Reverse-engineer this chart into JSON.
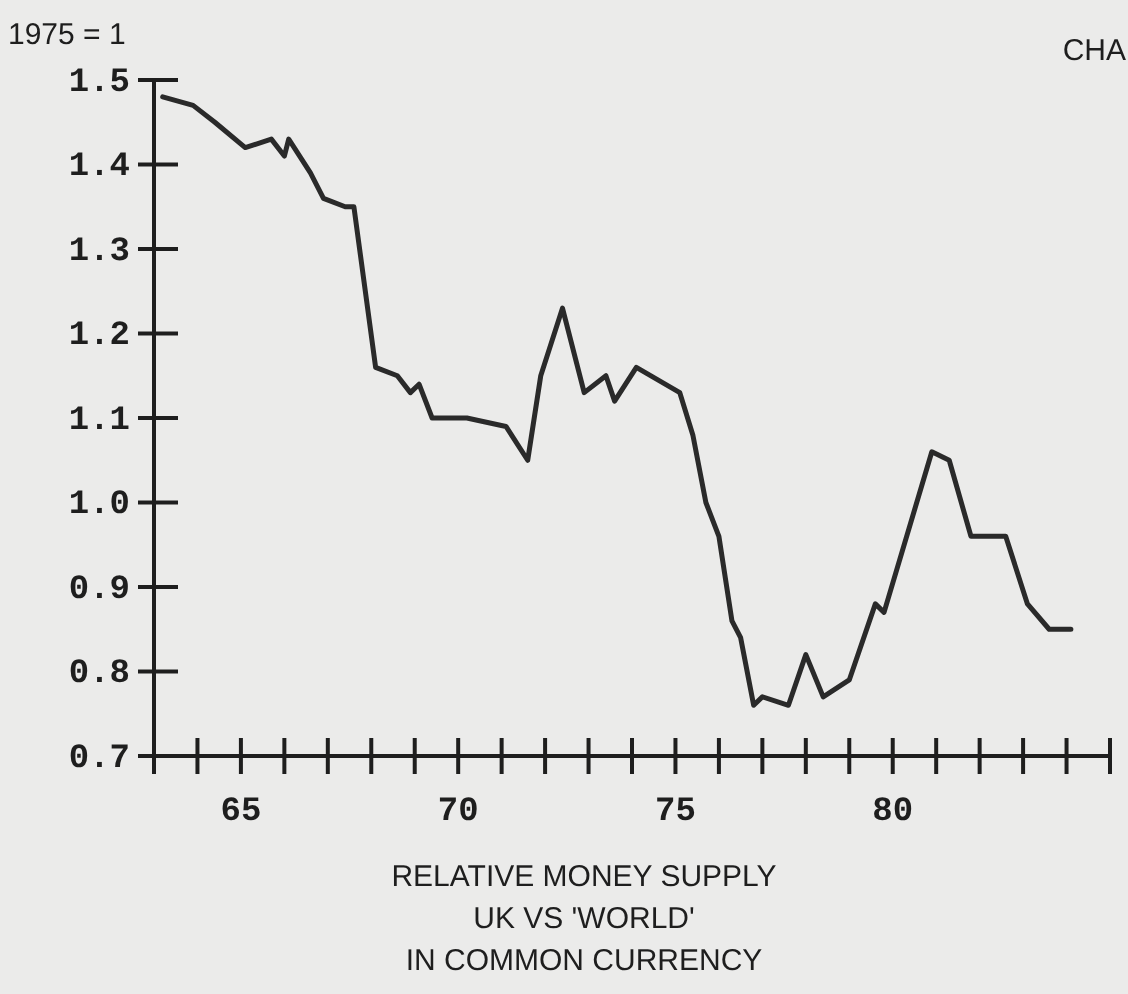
{
  "chart_data": {
    "type": "line",
    "ylabel": "1975 = 1",
    "xlabel": "RELATIVE MONEY SUPPLY\nUK VS 'WORLD'\nIN COMMON CURRENCY",
    "annotations": [
      "CHA"
    ],
    "x": [
      1963.2,
      1963.9,
      1964.4,
      1965.1,
      1965.7,
      1966.0,
      1966.1,
      1966.6,
      1966.9,
      1967.4,
      1967.6,
      1968.1,
      1968.6,
      1968.9,
      1969.1,
      1969.4,
      1970.2,
      1971.1,
      1971.6,
      1971.9,
      1972.4,
      1972.9,
      1973.4,
      1973.6,
      1974.1,
      1975.1,
      1975.4,
      1975.7,
      1976.0,
      1976.3,
      1976.5,
      1976.8,
      1977.0,
      1977.6,
      1978.0,
      1978.4,
      1979.0,
      1979.6,
      1979.8,
      1980.9,
      1981.3,
      1981.8,
      1982.2,
      1982.6,
      1983.1,
      1983.6,
      1984.1
    ],
    "series": [
      {
        "color": "#2a2a2a",
        "values": [
          1.48,
          1.47,
          1.45,
          1.42,
          1.43,
          1.41,
          1.43,
          1.39,
          1.36,
          1.35,
          1.35,
          1.16,
          1.15,
          1.13,
          1.14,
          1.1,
          1.1,
          1.09,
          1.05,
          1.15,
          1.23,
          1.13,
          1.15,
          1.12,
          1.16,
          1.13,
          1.08,
          1.0,
          0.96,
          0.86,
          0.84,
          0.76,
          0.77,
          0.76,
          0.82,
          0.77,
          0.79,
          0.88,
          0.87,
          1.06,
          1.05,
          0.96,
          0.96,
          0.96,
          0.88,
          0.85,
          0.85
        ]
      }
    ],
    "xlim": [
      1963,
      1985
    ],
    "xticks": [
      {
        "value": 1963,
        "label": null
      },
      {
        "value": 1964,
        "label": null
      },
      {
        "value": 1965,
        "label": "65"
      },
      {
        "value": 1966,
        "label": null
      },
      {
        "value": 1967,
        "label": null
      },
      {
        "value": 1968,
        "label": null
      },
      {
        "value": 1969,
        "label": null
      },
      {
        "value": 1970,
        "label": "70"
      },
      {
        "value": 1971,
        "label": null
      },
      {
        "value": 1972,
        "label": null
      },
      {
        "value": 1973,
        "label": null
      },
      {
        "value": 1974,
        "label": null
      },
      {
        "value": 1975,
        "label": "75"
      },
      {
        "value": 1976,
        "label": null
      },
      {
        "value": 1977,
        "label": null
      },
      {
        "value": 1978,
        "label": null
      },
      {
        "value": 1979,
        "label": null
      },
      {
        "value": 1980,
        "label": "80"
      },
      {
        "value": 1981,
        "label": null
      },
      {
        "value": 1982,
        "label": null
      },
      {
        "value": 1983,
        "label": null
      },
      {
        "value": 1984,
        "label": null
      },
      {
        "value": 1985,
        "label": null
      }
    ],
    "ylim": [
      0.7,
      1.5
    ],
    "yticks": [
      0.7,
      0.8,
      0.9,
      {
        "value": 1,
        "label": "1.0"
      },
      1.1,
      1.2,
      1.3,
      1.4,
      1.5
    ],
    "grid": false,
    "marker": "none",
    "line_style": "solid"
  }
}
